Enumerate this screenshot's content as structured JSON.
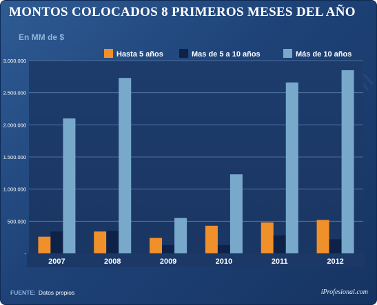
{
  "header": {
    "title": "MONTOS COLOCADOS 8 PRIMEROS MESES DEL AÑO",
    "unit": "En MM de $"
  },
  "footer": {
    "source_label": "FUENTE:",
    "source_text": "Datos propios",
    "brand": "iProfesional.com"
  },
  "colors": {
    "hasta5": "#f0902a",
    "de5a10": "#0e2248",
    "mas10": "#78a9cb"
  },
  "chart_data": {
    "type": "bar",
    "title": "MONTOS COLOCADOS 8 PRIMEROS MESES DEL AÑO",
    "ylabel": "En MM de $",
    "xlabel": "",
    "categories": [
      "2007",
      "2008",
      "2009",
      "2010",
      "2011",
      "2012"
    ],
    "series": [
      {
        "name": "Hasta 5 años",
        "values": [
          260000,
          340000,
          240000,
          430000,
          480000,
          520000
        ]
      },
      {
        "name": "Mas de 5 a 10 años",
        "values": [
          340000,
          350000,
          130000,
          130000,
          280000,
          220000
        ]
      },
      {
        "name": "Más de 10 años",
        "values": [
          2100000,
          2730000,
          550000,
          1230000,
          2660000,
          2850000
        ]
      }
    ],
    "ylim": [
      0,
      3000000
    ],
    "yticks": [
      0,
      500000,
      1000000,
      1500000,
      2000000,
      2500000,
      3000000
    ],
    "ytick_labels": [
      "-",
      "500.000",
      "1.000.000",
      "1.500.000",
      "2.000.000",
      "2.500.000",
      "3.000.000"
    ],
    "grid": true,
    "legend": "top"
  }
}
